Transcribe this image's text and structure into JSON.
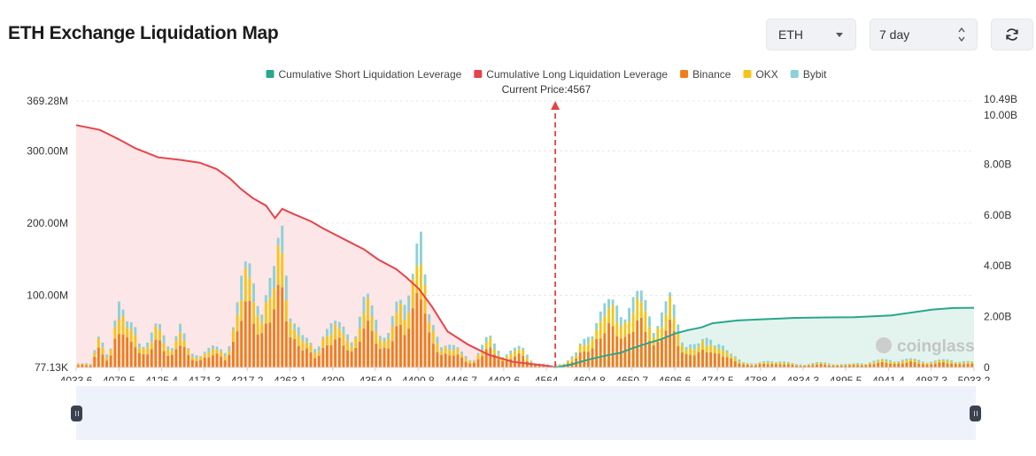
{
  "header": {
    "title": "ETH Exchange Liquidation Map",
    "coin_select": "ETH",
    "period_select": "7 day"
  },
  "icons": {
    "refresh": "refresh-icon",
    "watermark": "coinglass-logo"
  },
  "colors": {
    "short": "#2aa68c",
    "long": "#e5444b",
    "binance": "#f07d1a",
    "okx": "#f6c418",
    "bybit": "#8cd1d6",
    "long_fill": "#fde6e7",
    "short_fill": "#e3f4ee",
    "current_price_marker": "#e04646"
  },
  "chart_data": {
    "type": "bar",
    "title": "",
    "legend": {
      "placement": "top",
      "items": [
        {
          "name": "Cumulative Short Liquidation Leverage",
          "color": "#2aa68c"
        },
        {
          "name": "Cumulative Long Liquidation Leverage",
          "color": "#e5444b"
        },
        {
          "name": "Binance",
          "color": "#f07d1a"
        },
        {
          "name": "OKX",
          "color": "#f6c418"
        },
        {
          "name": "Bybit",
          "color": "#8cd1d6"
        }
      ]
    },
    "current_price_label": "Current Price:4567",
    "current_price": 4567,
    "x_range": [
      4033.6,
      5033.2
    ],
    "x_ticks": [
      "4033.6",
      "4079.5",
      "4125.4",
      "4171.3",
      "4217.2",
      "4263.1",
      "4309",
      "4354.9",
      "4400.8",
      "4446.7",
      "4492.6",
      "4564",
      "4604.8",
      "4650.7",
      "4696.6",
      "4742.5",
      "4788.4",
      "4834.3",
      "4895.5",
      "4941.4",
      "4987.3",
      "5033.2"
    ],
    "y_left": {
      "range": [
        77130,
        369280000
      ],
      "ticks": [
        {
          "label": "369.28M",
          "value": 369280000
        },
        {
          "label": "300.00M",
          "value": 300000000
        },
        {
          "label": "200.00M",
          "value": 200000000
        },
        {
          "label": "100.00M",
          "value": 100000000
        },
        {
          "label": "77.13K",
          "value": 77130
        }
      ]
    },
    "y_right": {
      "range": [
        0,
        10490000000
      ],
      "ticks": [
        {
          "label": "10.49B",
          "value": 10490000000
        },
        {
          "label": "10.00B",
          "value": 10000000000
        },
        {
          "label": "8.00B",
          "value": 8000000000
        },
        {
          "label": "6.00B",
          "value": 6000000000
        },
        {
          "label": "4.00B",
          "value": 4000000000
        },
        {
          "label": "2.00B",
          "value": 2000000000
        },
        {
          "label": "0",
          "value": 0
        }
      ]
    },
    "grid": true,
    "watermark": "coinglass",
    "cumulative_long": {
      "name": "Cumulative Long Liquidation Leverage",
      "x": [
        4033.6,
        4060,
        4080,
        4100,
        4125,
        4150,
        4171,
        4190,
        4205,
        4217,
        4230,
        4245,
        4255,
        4263,
        4275,
        4295,
        4309,
        4330,
        4354,
        4370,
        4390,
        4401,
        4415,
        4430,
        4447,
        4470,
        4493,
        4520,
        4545,
        4560,
        4567
      ],
      "y": [
        9.54,
        9.35,
        9.0,
        8.62,
        8.27,
        8.17,
        8.06,
        7.81,
        7.43,
        7.03,
        6.67,
        6.37,
        5.88,
        6.24,
        6.05,
        5.75,
        5.46,
        5.08,
        4.65,
        4.25,
        3.87,
        3.55,
        3.1,
        2.38,
        1.42,
        0.9,
        0.5,
        0.22,
        0.12,
        0.06,
        0.0
      ]
    },
    "cumulative_short": {
      "name": "Cumulative Short Liquidation Leverage",
      "x": [
        4567,
        4585,
        4605,
        4625,
        4640,
        4650,
        4665,
        4685,
        4700,
        4715,
        4730,
        4742,
        4770,
        4800,
        4834,
        4870,
        4900,
        4941,
        4987,
        5010,
        5033.2
      ],
      "y": [
        0.0,
        0.12,
        0.32,
        0.48,
        0.58,
        0.72,
        0.9,
        1.11,
        1.33,
        1.47,
        1.58,
        1.74,
        1.85,
        1.9,
        1.95,
        1.97,
        1.98,
        2.05,
        2.28,
        2.34,
        2.35
      ]
    },
    "bar_series_order": [
      "Binance",
      "OKX",
      "Bybit"
    ],
    "bar_peaks": {
      "x": [
        4033.6,
        4050,
        4060,
        4070,
        4079.5,
        4090,
        4100,
        4110,
        4125.4,
        4140,
        4150,
        4160,
        4171.3,
        4185,
        4200,
        4217.2,
        4225,
        4240,
        4255,
        4263.1,
        4275,
        4285,
        4300,
        4309,
        4320,
        4335,
        4345,
        4354.9,
        4365,
        4380,
        4390,
        4400.8,
        4410,
        4418,
        4425,
        4435,
        4446.7,
        4460,
        4475,
        4492.6,
        4510,
        4530,
        4545,
        4556,
        4564,
        4567,
        4575,
        4590,
        4604.8,
        4612,
        4625,
        4638,
        4650.7,
        4665,
        4680,
        4696.6,
        4710,
        4725,
        4742.5,
        4760,
        4788.4,
        4810,
        4834.3,
        4860,
        4895.5,
        4920,
        4941.4,
        4965,
        4987.3,
        5010,
        5033.2
      ],
      "y": [
        4,
        2,
        20,
        8,
        40,
        25,
        30,
        12,
        26,
        15,
        25,
        8,
        10,
        12,
        10,
        50,
        60,
        45,
        55,
        85,
        35,
        18,
        12,
        25,
        25,
        25,
        22,
        40,
        35,
        20,
        35,
        40,
        88,
        78,
        30,
        22,
        15,
        10,
        5,
        18,
        9,
        12,
        3,
        2,
        1,
        2,
        3,
        8,
        22,
        34,
        36,
        40,
        40,
        42,
        30,
        40,
        18,
        12,
        22,
        8,
        2,
        5,
        2,
        3,
        2,
        4,
        5,
        5,
        4,
        5,
        3
      ]
    }
  }
}
